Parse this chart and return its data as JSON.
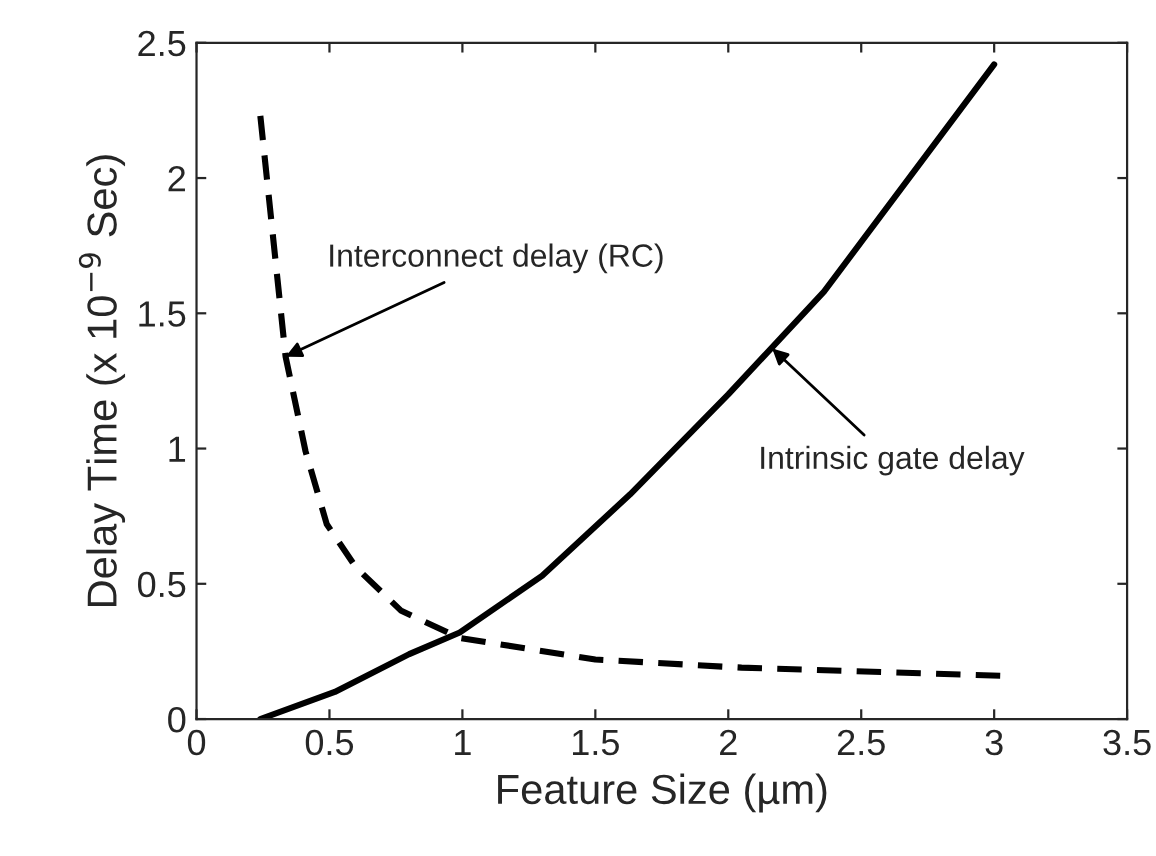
{
  "chart_data": {
    "type": "line",
    "xlabel": "Feature Size (µm)",
    "ylabel": "Delay Time (x 10$^{−9}$ Sec)",
    "xlim": [
      0,
      3.5
    ],
    "ylim": [
      0,
      2.5
    ],
    "xticks": [
      0,
      0.5,
      1,
      1.5,
      2,
      2.5,
      3,
      3.5
    ],
    "yticks": [
      0,
      0.5,
      1,
      1.5,
      2,
      2.5
    ],
    "grid": false,
    "series": [
      {
        "color": "#000000",
        "line_style": "dashed",
        "x": [
          0.24,
          0.335,
          0.41,
          0.49,
          0.6,
          0.77,
          0.99,
          1.5,
          2.05,
          3.03
        ],
        "values": [
          2.23,
          1.34,
          0.99,
          0.72,
          0.56,
          0.4,
          0.3,
          0.22,
          0.19,
          0.16
        ]
      },
      {
        "color": "#000000",
        "line_style": "solid",
        "x": [
          0.24,
          0.52,
          0.8,
          0.99,
          1.3,
          1.63,
          2.0,
          2.36,
          3.0
        ],
        "values": [
          0,
          0.1,
          0.24,
          0.32,
          0.53,
          0.83,
          1.2,
          1.58,
          2.42
        ]
      }
    ],
    "annotations": [
      {
        "text": "Interconnect delay (RC)",
        "x": 0.335,
        "y": 1.34
      },
      {
        "text": "Intrinsic gate delay",
        "x": 2.165,
        "y": 1.37
      }
    ]
  }
}
